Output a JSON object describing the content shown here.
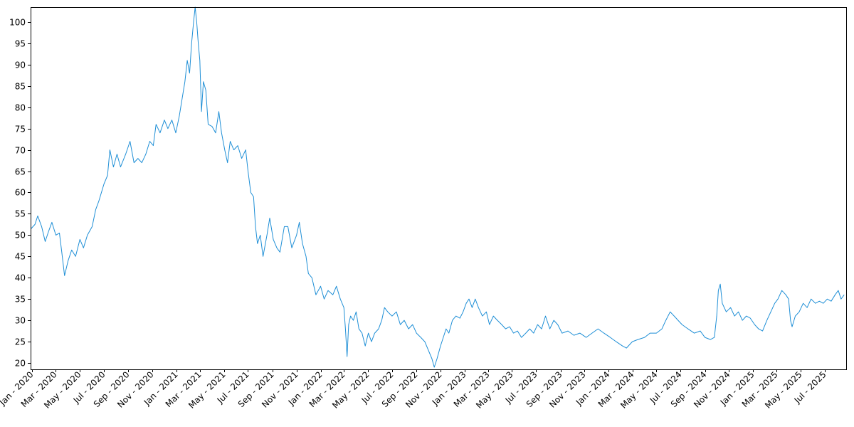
{
  "chart_data": {
    "type": "line",
    "title": "",
    "xlabel": "",
    "ylabel": "",
    "x_range": [
      "2019-12-28",
      "2025-08-25"
    ],
    "ylim": [
      18.5,
      103.5
    ],
    "grid": false,
    "legend": "none",
    "y_ticks": [
      20,
      25,
      30,
      35,
      40,
      45,
      50,
      55,
      60,
      65,
      70,
      75,
      80,
      85,
      90,
      95,
      100
    ],
    "x_ticks": [
      {
        "date": "2020-01-01",
        "label": "Jan - 2020"
      },
      {
        "date": "2020-03-01",
        "label": "Mar - 2020"
      },
      {
        "date": "2020-05-01",
        "label": "May - 2020"
      },
      {
        "date": "2020-07-01",
        "label": "Jul - 2020"
      },
      {
        "date": "2020-09-01",
        "label": "Sep - 2020"
      },
      {
        "date": "2020-11-01",
        "label": "Nov - 2020"
      },
      {
        "date": "2021-01-01",
        "label": "Jan - 2021"
      },
      {
        "date": "2021-03-01",
        "label": "Mar - 2021"
      },
      {
        "date": "2021-05-01",
        "label": "May - 2021"
      },
      {
        "date": "2021-07-01",
        "label": "Jul - 2021"
      },
      {
        "date": "2021-09-01",
        "label": "Sep - 2021"
      },
      {
        "date": "2021-11-01",
        "label": "Nov - 2021"
      },
      {
        "date": "2022-01-01",
        "label": "Jan - 2022"
      },
      {
        "date": "2022-03-01",
        "label": "Mar - 2022"
      },
      {
        "date": "2022-05-01",
        "label": "May - 2022"
      },
      {
        "date": "2022-07-01",
        "label": "Jul - 2022"
      },
      {
        "date": "2022-09-01",
        "label": "Sep - 2022"
      },
      {
        "date": "2022-11-01",
        "label": "Nov - 2022"
      },
      {
        "date": "2023-01-01",
        "label": "Jan - 2023"
      },
      {
        "date": "2023-03-01",
        "label": "Mar - 2023"
      },
      {
        "date": "2023-05-01",
        "label": "May - 2023"
      },
      {
        "date": "2023-07-01",
        "label": "Jul - 2023"
      },
      {
        "date": "2023-09-01",
        "label": "Sep - 2023"
      },
      {
        "date": "2023-11-01",
        "label": "Nov - 2023"
      },
      {
        "date": "2024-01-01",
        "label": "Jan - 2024"
      },
      {
        "date": "2024-03-01",
        "label": "Mar - 2024"
      },
      {
        "date": "2024-05-01",
        "label": "May - 2024"
      },
      {
        "date": "2024-07-01",
        "label": "Jul - 2024"
      },
      {
        "date": "2024-09-01",
        "label": "Sep - 2024"
      },
      {
        "date": "2024-11-01",
        "label": "Nov - 2024"
      },
      {
        "date": "2025-01-01",
        "label": "Jan - 2025"
      },
      {
        "date": "2025-03-01",
        "label": "Mar - 2025"
      },
      {
        "date": "2025-05-01",
        "label": "May - 2025"
      },
      {
        "date": "2025-07-01",
        "label": "Jul - 2025"
      }
    ],
    "series": [
      {
        "color": "#1f8fd6",
        "points": [
          [
            "2019-12-29",
            51.5
          ],
          [
            "2020-01-08",
            52.5
          ],
          [
            "2020-01-15",
            54.5
          ],
          [
            "2020-01-25",
            52.0
          ],
          [
            "2020-02-03",
            48.5
          ],
          [
            "2020-02-12",
            51.0
          ],
          [
            "2020-02-20",
            53.0
          ],
          [
            "2020-03-01",
            50.0
          ],
          [
            "2020-03-10",
            50.5
          ],
          [
            "2020-03-16",
            46.0
          ],
          [
            "2020-03-23",
            40.5
          ],
          [
            "2020-04-01",
            44.0
          ],
          [
            "2020-04-10",
            46.5
          ],
          [
            "2020-04-20",
            45.0
          ],
          [
            "2020-05-01",
            49.0
          ],
          [
            "2020-05-10",
            47.0
          ],
          [
            "2020-05-20",
            50.0
          ],
          [
            "2020-06-01",
            52.0
          ],
          [
            "2020-06-10",
            56.0
          ],
          [
            "2020-06-18",
            58.0
          ],
          [
            "2020-07-01",
            62.0
          ],
          [
            "2020-07-10",
            64.0
          ],
          [
            "2020-07-16",
            70.0
          ],
          [
            "2020-07-25",
            66.0
          ],
          [
            "2020-08-03",
            69.0
          ],
          [
            "2020-08-12",
            66.0
          ],
          [
            "2020-08-25",
            69.0
          ],
          [
            "2020-09-05",
            72.0
          ],
          [
            "2020-09-15",
            67.0
          ],
          [
            "2020-09-25",
            68.0
          ],
          [
            "2020-10-05",
            67.0
          ],
          [
            "2020-10-15",
            69.0
          ],
          [
            "2020-10-25",
            72.0
          ],
          [
            "2020-11-03",
            71.0
          ],
          [
            "2020-11-10",
            76.0
          ],
          [
            "2020-11-20",
            74.0
          ],
          [
            "2020-12-01",
            77.0
          ],
          [
            "2020-12-10",
            75.0
          ],
          [
            "2020-12-20",
            77.0
          ],
          [
            "2020-12-30",
            74.0
          ],
          [
            "2021-01-08",
            78.0
          ],
          [
            "2021-01-15",
            82.0
          ],
          [
            "2021-01-22",
            86.0
          ],
          [
            "2021-01-28",
            91.0
          ],
          [
            "2021-02-03",
            88.0
          ],
          [
            "2021-02-08",
            95.0
          ],
          [
            "2021-02-13",
            100.0
          ],
          [
            "2021-02-17",
            103.5
          ],
          [
            "2021-02-21",
            100.0
          ],
          [
            "2021-02-25",
            95.0
          ],
          [
            "2021-03-01",
            91.0
          ],
          [
            "2021-03-05",
            79.0
          ],
          [
            "2021-03-10",
            86.0
          ],
          [
            "2021-03-16",
            84.0
          ],
          [
            "2021-03-22",
            76.0
          ],
          [
            "2021-04-01",
            75.5
          ],
          [
            "2021-04-10",
            74.0
          ],
          [
            "2021-04-18",
            79.0
          ],
          [
            "2021-04-25",
            74.0
          ],
          [
            "2021-05-03",
            70.0
          ],
          [
            "2021-05-10",
            67.0
          ],
          [
            "2021-05-17",
            72.0
          ],
          [
            "2021-05-26",
            70.0
          ],
          [
            "2021-06-05",
            71.0
          ],
          [
            "2021-06-15",
            68.0
          ],
          [
            "2021-06-25",
            70.0
          ],
          [
            "2021-07-01",
            65.0
          ],
          [
            "2021-07-08",
            60.0
          ],
          [
            "2021-07-15",
            59.0
          ],
          [
            "2021-07-20",
            52.0
          ],
          [
            "2021-07-25",
            48.0
          ],
          [
            "2021-08-01",
            50.0
          ],
          [
            "2021-08-08",
            45.0
          ],
          [
            "2021-08-18",
            50.0
          ],
          [
            "2021-08-25",
            54.0
          ],
          [
            "2021-09-03",
            49.0
          ],
          [
            "2021-09-12",
            47.0
          ],
          [
            "2021-09-20",
            46.0
          ],
          [
            "2021-10-01",
            52.0
          ],
          [
            "2021-10-10",
            52.0
          ],
          [
            "2021-10-20",
            47.0
          ],
          [
            "2021-11-01",
            50.0
          ],
          [
            "2021-11-08",
            53.0
          ],
          [
            "2021-11-16",
            48.0
          ],
          [
            "2021-11-25",
            45.0
          ],
          [
            "2021-12-01",
            41.0
          ],
          [
            "2021-12-10",
            40.0
          ],
          [
            "2021-12-20",
            36.0
          ],
          [
            "2022-01-01",
            38.0
          ],
          [
            "2022-01-10",
            35.0
          ],
          [
            "2022-01-20",
            37.0
          ],
          [
            "2022-02-01",
            36.0
          ],
          [
            "2022-02-10",
            38.0
          ],
          [
            "2022-02-20",
            35.0
          ],
          [
            "2022-03-01",
            33.0
          ],
          [
            "2022-03-05",
            28.0
          ],
          [
            "2022-03-09",
            21.5
          ],
          [
            "2022-03-13",
            29.0
          ],
          [
            "2022-03-18",
            31.0
          ],
          [
            "2022-03-25",
            30.0
          ],
          [
            "2022-04-01",
            32.0
          ],
          [
            "2022-04-08",
            28.0
          ],
          [
            "2022-04-16",
            27.0
          ],
          [
            "2022-04-24",
            24.0
          ],
          [
            "2022-05-02",
            27.0
          ],
          [
            "2022-05-10",
            25.0
          ],
          [
            "2022-05-18",
            27.0
          ],
          [
            "2022-05-28",
            28.0
          ],
          [
            "2022-06-05",
            30.0
          ],
          [
            "2022-06-12",
            33.0
          ],
          [
            "2022-06-20",
            32.0
          ],
          [
            "2022-07-01",
            31.0
          ],
          [
            "2022-07-12",
            32.0
          ],
          [
            "2022-07-22",
            29.0
          ],
          [
            "2022-08-01",
            30.0
          ],
          [
            "2022-08-12",
            28.0
          ],
          [
            "2022-08-22",
            29.0
          ],
          [
            "2022-09-01",
            27.0
          ],
          [
            "2022-09-12",
            26.0
          ],
          [
            "2022-09-22",
            25.0
          ],
          [
            "2022-10-01",
            23.0
          ],
          [
            "2022-10-10",
            21.0
          ],
          [
            "2022-10-16",
            19.0
          ],
          [
            "2022-10-23",
            21.0
          ],
          [
            "2022-11-01",
            24.0
          ],
          [
            "2022-11-08",
            26.0
          ],
          [
            "2022-11-15",
            28.0
          ],
          [
            "2022-11-22",
            27.0
          ],
          [
            "2022-12-01",
            30.0
          ],
          [
            "2022-12-10",
            31.0
          ],
          [
            "2022-12-20",
            30.5
          ],
          [
            "2022-12-28",
            32.0
          ],
          [
            "2023-01-05",
            34.0
          ],
          [
            "2023-01-12",
            35.0
          ],
          [
            "2023-01-20",
            33.0
          ],
          [
            "2023-01-28",
            35.0
          ],
          [
            "2023-02-05",
            33.0
          ],
          [
            "2023-02-15",
            31.0
          ],
          [
            "2023-02-25",
            32.0
          ],
          [
            "2023-03-05",
            29.0
          ],
          [
            "2023-03-15",
            31.0
          ],
          [
            "2023-03-25",
            30.0
          ],
          [
            "2023-04-05",
            29.0
          ],
          [
            "2023-04-15",
            28.0
          ],
          [
            "2023-04-25",
            28.5
          ],
          [
            "2023-05-05",
            27.0
          ],
          [
            "2023-05-15",
            27.5
          ],
          [
            "2023-05-25",
            26.0
          ],
          [
            "2023-06-05",
            27.0
          ],
          [
            "2023-06-15",
            28.0
          ],
          [
            "2023-06-25",
            27.0
          ],
          [
            "2023-07-05",
            29.0
          ],
          [
            "2023-07-15",
            28.0
          ],
          [
            "2023-07-25",
            31.0
          ],
          [
            "2023-08-05",
            28.0
          ],
          [
            "2023-08-15",
            30.0
          ],
          [
            "2023-08-25",
            29.0
          ],
          [
            "2023-09-05",
            27.0
          ],
          [
            "2023-09-20",
            27.5
          ],
          [
            "2023-10-05",
            26.5
          ],
          [
            "2023-10-20",
            27.0
          ],
          [
            "2023-11-05",
            26.0
          ],
          [
            "2023-11-20",
            27.0
          ],
          [
            "2023-12-05",
            28.0
          ],
          [
            "2023-12-20",
            27.0
          ],
          [
            "2024-01-05",
            26.0
          ],
          [
            "2024-01-20",
            25.0
          ],
          [
            "2024-02-05",
            24.0
          ],
          [
            "2024-02-15",
            23.5
          ],
          [
            "2024-03-01",
            25.0
          ],
          [
            "2024-03-15",
            25.5
          ],
          [
            "2024-04-01",
            26.0
          ],
          [
            "2024-04-15",
            27.0
          ],
          [
            "2024-05-01",
            27.0
          ],
          [
            "2024-05-15",
            28.0
          ],
          [
            "2024-05-25",
            30.0
          ],
          [
            "2024-06-05",
            32.0
          ],
          [
            "2024-06-15",
            31.0
          ],
          [
            "2024-06-25",
            30.0
          ],
          [
            "2024-07-05",
            29.0
          ],
          [
            "2024-07-20",
            28.0
          ],
          [
            "2024-08-05",
            27.0
          ],
          [
            "2024-08-20",
            27.5
          ],
          [
            "2024-09-01",
            26.0
          ],
          [
            "2024-09-15",
            25.5
          ],
          [
            "2024-09-25",
            26.0
          ],
          [
            "2024-10-01",
            31.0
          ],
          [
            "2024-10-05",
            37.0
          ],
          [
            "2024-10-10",
            38.5
          ],
          [
            "2024-10-15",
            34.0
          ],
          [
            "2024-10-25",
            32.0
          ],
          [
            "2024-11-05",
            33.0
          ],
          [
            "2024-11-15",
            31.0
          ],
          [
            "2024-11-25",
            32.0
          ],
          [
            "2024-12-05",
            30.0
          ],
          [
            "2024-12-15",
            31.0
          ],
          [
            "2024-12-25",
            30.5
          ],
          [
            "2025-01-05",
            29.0
          ],
          [
            "2025-01-15",
            28.0
          ],
          [
            "2025-01-25",
            27.5
          ],
          [
            "2025-02-05",
            30.0
          ],
          [
            "2025-02-15",
            32.0
          ],
          [
            "2025-02-25",
            34.0
          ],
          [
            "2025-03-05",
            35.0
          ],
          [
            "2025-03-15",
            37.0
          ],
          [
            "2025-03-25",
            36.0
          ],
          [
            "2025-04-01",
            35.0
          ],
          [
            "2025-04-06",
            30.0
          ],
          [
            "2025-04-10",
            28.5
          ],
          [
            "2025-04-18",
            31.0
          ],
          [
            "2025-04-28",
            32.0
          ],
          [
            "2025-05-08",
            34.0
          ],
          [
            "2025-05-18",
            33.0
          ],
          [
            "2025-05-28",
            35.0
          ],
          [
            "2025-06-08",
            34.0
          ],
          [
            "2025-06-18",
            34.5
          ],
          [
            "2025-06-28",
            34.0
          ],
          [
            "2025-07-08",
            35.0
          ],
          [
            "2025-07-18",
            34.5
          ],
          [
            "2025-07-28",
            36.0
          ],
          [
            "2025-08-05",
            37.0
          ],
          [
            "2025-08-12",
            35.0
          ],
          [
            "2025-08-20",
            36.0
          ]
        ]
      }
    ]
  }
}
